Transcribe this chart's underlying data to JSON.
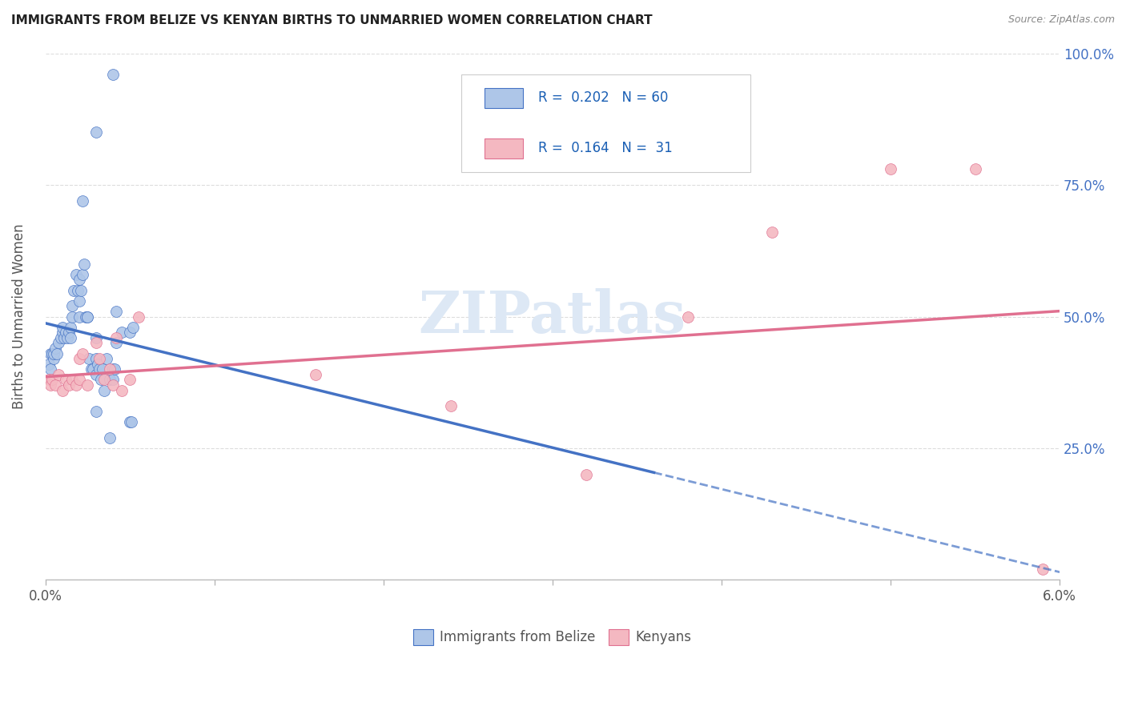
{
  "title": "IMMIGRANTS FROM BELIZE VS KENYAN BIRTHS TO UNMARRIED WOMEN CORRELATION CHART",
  "source": "Source: ZipAtlas.com",
  "ylabel": "Births to Unmarried Women",
  "xmin": 0.0,
  "xmax": 0.06,
  "ymin": 0.0,
  "ymax": 1.0,
  "blue_color": "#aec6e8",
  "pink_color": "#f4b8c1",
  "blue_line_color": "#4472c4",
  "pink_line_color": "#e07090",
  "legend_blue_label": "Immigrants from Belize",
  "legend_pink_label": "Kenyans",
  "r_blue": 0.202,
  "n_blue": 60,
  "r_pink": 0.164,
  "n_pink": 31,
  "blue_scatter_x": [
    0.0002,
    0.0003,
    0.0003,
    0.0004,
    0.0005,
    0.0005,
    0.0006,
    0.0007,
    0.0008,
    0.0009,
    0.001,
    0.001,
    0.0011,
    0.0012,
    0.0013,
    0.0014,
    0.0015,
    0.0015,
    0.0016,
    0.0016,
    0.0017,
    0.0018,
    0.0019,
    0.002,
    0.002,
    0.002,
    0.0021,
    0.0022,
    0.0023,
    0.0024,
    0.0025,
    0.0025,
    0.0026,
    0.0027,
    0.0028,
    0.003,
    0.003,
    0.003,
    0.0031,
    0.0032,
    0.0033,
    0.0034,
    0.0035,
    0.0036,
    0.0038,
    0.004,
    0.004,
    0.0041,
    0.0042,
    0.0045,
    0.005,
    0.005,
    0.0051,
    0.0052,
    0.0038,
    0.0042,
    0.003,
    0.0022,
    0.003,
    0.004
  ],
  "blue_scatter_y": [
    0.41,
    0.4,
    0.43,
    0.43,
    0.42,
    0.43,
    0.44,
    0.43,
    0.45,
    0.46,
    0.47,
    0.48,
    0.46,
    0.47,
    0.46,
    0.47,
    0.48,
    0.46,
    0.5,
    0.52,
    0.55,
    0.58,
    0.55,
    0.57,
    0.53,
    0.5,
    0.55,
    0.58,
    0.6,
    0.5,
    0.5,
    0.5,
    0.42,
    0.4,
    0.4,
    0.46,
    0.42,
    0.39,
    0.41,
    0.4,
    0.38,
    0.4,
    0.36,
    0.42,
    0.38,
    0.4,
    0.38,
    0.4,
    0.45,
    0.47,
    0.47,
    0.3,
    0.3,
    0.48,
    0.27,
    0.51,
    0.32,
    0.72,
    0.85,
    0.96
  ],
  "pink_scatter_x": [
    0.0002,
    0.0003,
    0.0004,
    0.0006,
    0.0008,
    0.001,
    0.0012,
    0.0014,
    0.0016,
    0.0018,
    0.002,
    0.002,
    0.0022,
    0.0025,
    0.003,
    0.0032,
    0.0035,
    0.0038,
    0.004,
    0.0042,
    0.0045,
    0.005,
    0.0055,
    0.016,
    0.024,
    0.032,
    0.038,
    0.043,
    0.05,
    0.055,
    0.059
  ],
  "pink_scatter_y": [
    0.38,
    0.37,
    0.38,
    0.37,
    0.39,
    0.36,
    0.38,
    0.37,
    0.38,
    0.37,
    0.42,
    0.38,
    0.43,
    0.37,
    0.45,
    0.42,
    0.38,
    0.4,
    0.37,
    0.46,
    0.36,
    0.38,
    0.5,
    0.39,
    0.33,
    0.2,
    0.5,
    0.66,
    0.78,
    0.78,
    0.02
  ],
  "watermark": "ZIPatlas",
  "background_color": "#ffffff",
  "grid_color": "#dddddd"
}
